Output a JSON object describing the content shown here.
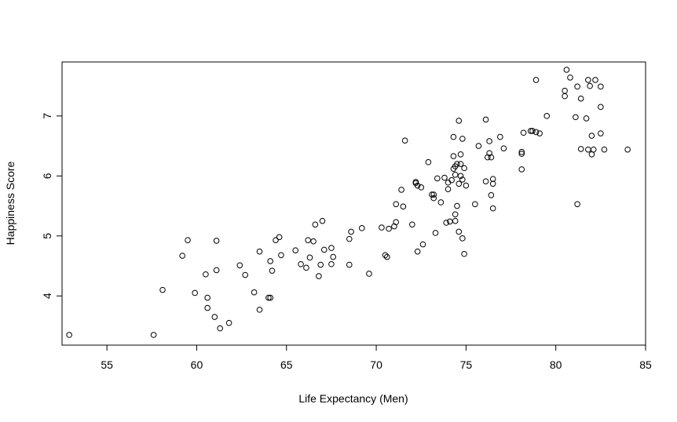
{
  "chart_data": {
    "type": "scatter",
    "title": "",
    "xlabel": "Life Expectancy (Men)",
    "ylabel": "Happiness Score",
    "xlim": [
      52.5,
      85
    ],
    "ylim": [
      3.18,
      7.9
    ],
    "xticks": [
      55,
      60,
      65,
      70,
      75,
      80,
      85
    ],
    "yticks": [
      4,
      5,
      6,
      7
    ],
    "grid": false,
    "legend": "none",
    "marker": "open-circle",
    "marker_color": "#000000",
    "points": [
      [
        52.9,
        3.35
      ],
      [
        57.6,
        3.35
      ],
      [
        58.1,
        4.1
      ],
      [
        59.2,
        4.67
      ],
      [
        59.5,
        4.93
      ],
      [
        59.9,
        4.05
      ],
      [
        60.5,
        4.36
      ],
      [
        60.6,
        3.97
      ],
      [
        60.6,
        3.8
      ],
      [
        61.0,
        3.65
      ],
      [
        61.1,
        4.92
      ],
      [
        61.1,
        4.43
      ],
      [
        61.3,
        3.46
      ],
      [
        61.8,
        3.55
      ],
      [
        62.4,
        4.51
      ],
      [
        62.7,
        4.35
      ],
      [
        63.2,
        4.06
      ],
      [
        63.5,
        4.74
      ],
      [
        63.5,
        3.77
      ],
      [
        64.0,
        3.97
      ],
      [
        64.1,
        3.97
      ],
      [
        64.1,
        4.58
      ],
      [
        64.2,
        4.42
      ],
      [
        64.4,
        4.93
      ],
      [
        64.6,
        4.98
      ],
      [
        64.7,
        4.68
      ],
      [
        65.5,
        4.76
      ],
      [
        65.8,
        4.53
      ],
      [
        66.1,
        4.47
      ],
      [
        66.2,
        4.93
      ],
      [
        66.3,
        4.64
      ],
      [
        66.5,
        4.91
      ],
      [
        66.6,
        5.19
      ],
      [
        66.8,
        4.33
      ],
      [
        66.9,
        4.52
      ],
      [
        67.0,
        5.25
      ],
      [
        67.1,
        4.77
      ],
      [
        67.5,
        4.8
      ],
      [
        67.5,
        4.53
      ],
      [
        67.6,
        4.65
      ],
      [
        68.5,
        4.95
      ],
      [
        68.5,
        4.52
      ],
      [
        68.6,
        5.07
      ],
      [
        69.2,
        5.13
      ],
      [
        69.6,
        4.37
      ],
      [
        70.3,
        5.14
      ],
      [
        70.5,
        4.68
      ],
      [
        70.6,
        4.65
      ],
      [
        70.7,
        5.12
      ],
      [
        71.0,
        5.16
      ],
      [
        71.1,
        5.23
      ],
      [
        71.1,
        5.53
      ],
      [
        71.4,
        5.77
      ],
      [
        71.5,
        5.49
      ],
      [
        71.6,
        6.59
      ],
      [
        72.0,
        5.19
      ],
      [
        72.2,
        5.88
      ],
      [
        72.2,
        5.9
      ],
      [
        72.3,
        5.84
      ],
      [
        72.3,
        4.74
      ],
      [
        72.5,
        5.81
      ],
      [
        72.6,
        4.86
      ],
      [
        72.9,
        6.23
      ],
      [
        73.1,
        5.69
      ],
      [
        73.2,
        5.69
      ],
      [
        73.2,
        5.63
      ],
      [
        73.3,
        5.05
      ],
      [
        73.4,
        5.96
      ],
      [
        73.6,
        5.56
      ],
      [
        73.8,
        5.97
      ],
      [
        73.9,
        5.22
      ],
      [
        74.0,
        5.89
      ],
      [
        74.0,
        5.78
      ],
      [
        74.1,
        5.24
      ],
      [
        74.2,
        5.93
      ],
      [
        74.3,
        6.65
      ],
      [
        74.3,
        6.33
      ],
      [
        74.3,
        6.12
      ],
      [
        74.4,
        6.02
      ],
      [
        74.4,
        6.16
      ],
      [
        74.4,
        5.36
      ],
      [
        74.4,
        5.25
      ],
      [
        74.5,
        5.5
      ],
      [
        74.5,
        6.2
      ],
      [
        74.6,
        6.92
      ],
      [
        74.6,
        5.07
      ],
      [
        74.6,
        5.87
      ],
      [
        74.7,
        6.0
      ],
      [
        74.7,
        6.36
      ],
      [
        74.7,
        6.2
      ],
      [
        74.8,
        6.62
      ],
      [
        74.8,
        5.94
      ],
      [
        74.8,
        4.96
      ],
      [
        74.9,
        6.13
      ],
      [
        74.9,
        4.7
      ],
      [
        75.0,
        5.84
      ],
      [
        75.5,
        5.53
      ],
      [
        75.7,
        6.5
      ],
      [
        76.1,
        6.94
      ],
      [
        76.1,
        5.91
      ],
      [
        76.2,
        6.31
      ],
      [
        76.3,
        6.58
      ],
      [
        76.3,
        6.38
      ],
      [
        76.4,
        6.31
      ],
      [
        76.4,
        5.68
      ],
      [
        76.5,
        5.95
      ],
      [
        76.5,
        5.87
      ],
      [
        76.5,
        5.46
      ],
      [
        76.9,
        6.65
      ],
      [
        77.1,
        6.46
      ],
      [
        78.1,
        6.4
      ],
      [
        78.1,
        6.37
      ],
      [
        78.1,
        6.11
      ],
      [
        78.2,
        6.72
      ],
      [
        78.6,
        6.75
      ],
      [
        78.7,
        6.75
      ],
      [
        78.9,
        7.6
      ],
      [
        78.9,
        6.73
      ],
      [
        79.1,
        6.71
      ],
      [
        79.5,
        7.0
      ],
      [
        80.5,
        7.42
      ],
      [
        80.5,
        7.33
      ],
      [
        80.6,
        7.77
      ],
      [
        80.8,
        7.64
      ],
      [
        81.1,
        6.98
      ],
      [
        81.2,
        7.49
      ],
      [
        81.2,
        5.53
      ],
      [
        81.4,
        7.29
      ],
      [
        81.4,
        6.45
      ],
      [
        81.7,
        6.96
      ],
      [
        81.8,
        6.44
      ],
      [
        81.8,
        7.6
      ],
      [
        81.9,
        7.5
      ],
      [
        82.0,
        6.67
      ],
      [
        82.0,
        6.36
      ],
      [
        82.1,
        6.44
      ],
      [
        82.2,
        7.6
      ],
      [
        82.5,
        7.49
      ],
      [
        82.5,
        7.15
      ],
      [
        82.5,
        6.71
      ],
      [
        82.7,
        6.44
      ],
      [
        84.0,
        6.44
      ]
    ]
  }
}
